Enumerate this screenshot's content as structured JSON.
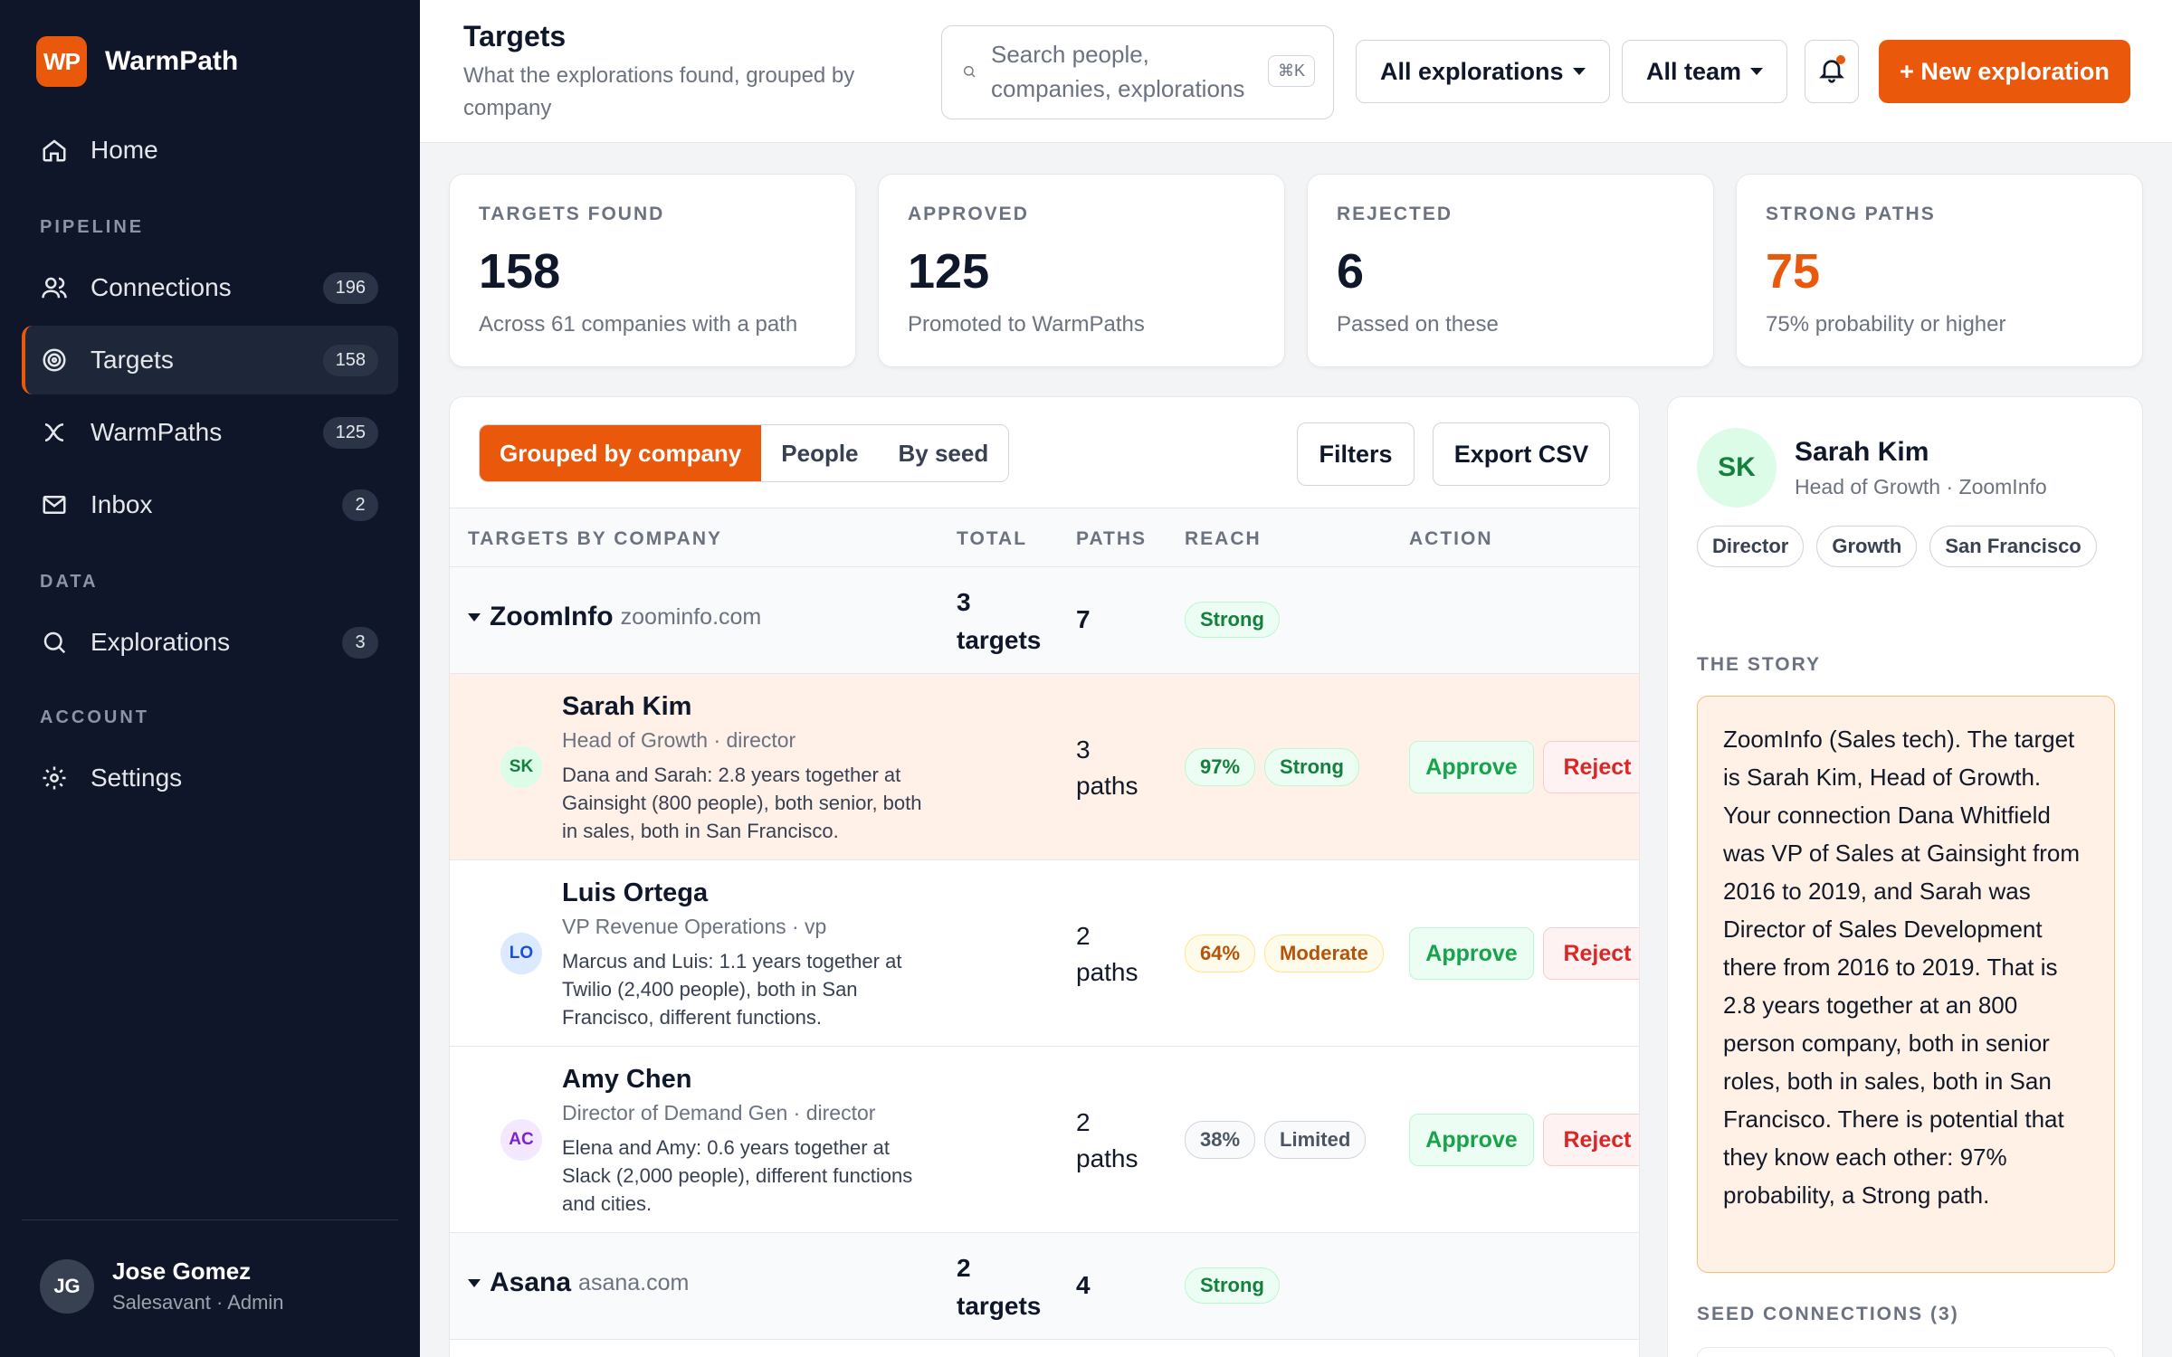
{
  "brand": {
    "logo_text": "WP",
    "name": "WarmPath"
  },
  "nav": {
    "home": {
      "label": "Home"
    },
    "section_pipeline": "PIPELINE",
    "connections": {
      "label": "Connections",
      "count": "196"
    },
    "targets": {
      "label": "Targets",
      "count": "158"
    },
    "warmpaths": {
      "label": "WarmPaths",
      "count": "125"
    },
    "inbox": {
      "label": "Inbox",
      "count": "2"
    },
    "section_data": "DATA",
    "explorations": {
      "label": "Explorations",
      "count": "3"
    },
    "section_account": "ACCOUNT",
    "settings": {
      "label": "Settings"
    }
  },
  "user": {
    "initials": "JG",
    "name": "Jose Gomez",
    "role": "Salesavant · Admin"
  },
  "header": {
    "title": "Targets",
    "subtitle": "What the explorations found, grouped by company",
    "search_placeholder": "Search people, companies, explorations",
    "search_shortcut": "⌘K",
    "filter_explorations": "All explorations",
    "filter_team": "All team",
    "new_button": "+ New exploration"
  },
  "stats": [
    {
      "label": "TARGETS FOUND",
      "value": "158",
      "sub": "Across 61 companies with a path"
    },
    {
      "label": "APPROVED",
      "value": "125",
      "sub": "Promoted to WarmPaths"
    },
    {
      "label": "REJECTED",
      "value": "6",
      "sub": "Passed on these"
    },
    {
      "label": "STRONG PATHS",
      "value": "75",
      "sub": "75% probability or higher"
    }
  ],
  "table": {
    "tabs": [
      "Grouped by company",
      "People",
      "By seed"
    ],
    "filters_button": "Filters",
    "export_button": "Export CSV",
    "columns": [
      "TARGETS BY COMPANY",
      "TOTAL",
      "PATHS",
      "REACH",
      "ACTION"
    ],
    "approve_label": "Approve",
    "reject_label": "Reject",
    "groups": [
      {
        "company": "ZoomInfo",
        "domain": "zoominfo.com",
        "total": "3 targets",
        "paths": "7",
        "reach": "Strong",
        "people": [
          {
            "initials": "SK",
            "name": "Sarah Kim",
            "title": "Head of Growth · director",
            "story": "Dana and Sarah: 2.8 years together at Gainsight (800 people), both senior, both in sales, both in San Francisco.",
            "paths": "3 paths",
            "probability": "97%",
            "reach": "Strong"
          },
          {
            "initials": "LO",
            "name": "Luis Ortega",
            "title": "VP Revenue Operations · vp",
            "story": "Marcus and Luis: 1.1 years together at Twilio (2,400 people), both in San Francisco, different functions.",
            "paths": "2 paths",
            "probability": "64%",
            "reach": "Moderate"
          },
          {
            "initials": "AC",
            "name": "Amy Chen",
            "title": "Director of Demand Gen · director",
            "story": "Elena and Amy: 0.6 years together at Slack (2,000 people), different functions and cities.",
            "paths": "2 paths",
            "probability": "38%",
            "reach": "Limited"
          }
        ]
      },
      {
        "company": "Asana",
        "domain": "asana.com",
        "total": "2 targets",
        "paths": "4",
        "reach": "Strong"
      }
    ]
  },
  "detail": {
    "initials": "SK",
    "name": "Sarah Kim",
    "title": "Head of Growth · ZoomInfo",
    "chips": [
      "Director",
      "Growth",
      "San Francisco"
    ],
    "story_heading": "THE STORY",
    "story": "ZoomInfo (Sales tech). The target is Sarah Kim, Head of Growth. Your connection Dana Whitfield was VP of Sales at Gainsight from 2016 to 2019, and Sarah was Director of Sales Development there from 2016 to 2019. That is 2.8 years together at an 800 person company, both in senior roles, both in sales, both in San Francisco. There is potential that they know each other: 97% probability, a Strong path.",
    "seed_heading": "SEED CONNECTIONS (3)"
  },
  "colors": {
    "accent": "#ea580c",
    "sidebar_bg": "#0f1629",
    "strong": "#15803d",
    "moderate": "#b45309",
    "limited": "#4b5563",
    "approve": "#16a34a",
    "reject": "#dc2626"
  }
}
